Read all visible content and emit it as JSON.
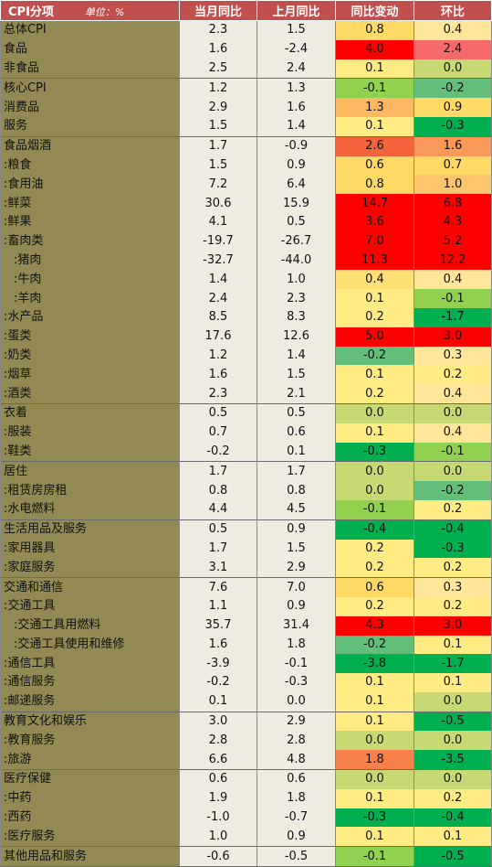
{
  "header": {
    "col_item": "CPI分项",
    "unit": "单位：%",
    "col_yoy": "当月同比",
    "col_prev_yoy": "上月同比",
    "col_yoy_change": "同比变动",
    "col_mom": "环比"
  },
  "rows": [
    {
      "label": "总体CPI",
      "yoy": "2.3",
      "prev": "1.5",
      "chg": "0.8",
      "mom": "0.4",
      "chg_color": "#ffd966",
      "mom_color": "#ffe699",
      "group_start": true
    },
    {
      "label": "食品",
      "yoy": "1.6",
      "prev": "-2.4",
      "chg": "4.0",
      "mom": "2.4",
      "chg_color": "#ff0000",
      "mom_color": "#f8696b",
      "group_start": false
    },
    {
      "label": "非食品",
      "yoy": "2.5",
      "prev": "2.4",
      "chg": "0.1",
      "mom": "0.0",
      "chg_color": "#ffeb84",
      "mom_color": "#c6d973",
      "group_start": false
    },
    {
      "label": "核心CPI",
      "yoy": "1.2",
      "prev": "1.3",
      "chg": "-0.1",
      "mom": "-0.2",
      "chg_color": "#92d050",
      "mom_color": "#63be7b",
      "group_start": true
    },
    {
      "label": "消费品",
      "yoy": "2.9",
      "prev": "1.6",
      "chg": "1.3",
      "mom": "0.9",
      "chg_color": "#fdb861",
      "mom_color": "#ffd966",
      "group_start": false
    },
    {
      "label": "服务",
      "yoy": "1.5",
      "prev": "1.4",
      "chg": "0.1",
      "mom": "-0.3",
      "chg_color": "#ffeb84",
      "mom_color": "#00b050",
      "group_start": false
    },
    {
      "label": "食品烟酒",
      "yoy": "1.7",
      "prev": "-0.9",
      "chg": "2.6",
      "mom": "1.6",
      "chg_color": "#f4643c",
      "mom_color": "#fa9a5a",
      "group_start": true
    },
    {
      "label": ":粮食",
      "yoy": "1.5",
      "prev": "0.9",
      "chg": "0.6",
      "mom": "0.7",
      "chg_color": "#ffd966",
      "mom_color": "#ffd966",
      "group_start": false
    },
    {
      "label": ":食用油",
      "yoy": "7.2",
      "prev": "6.4",
      "chg": "0.8",
      "mom": "1.0",
      "chg_color": "#ffd966",
      "mom_color": "#fdc66c",
      "group_start": false
    },
    {
      "label": ":鲜菜",
      "yoy": "30.6",
      "prev": "15.9",
      "chg": "14.7",
      "mom": "6.8",
      "chg_color": "#ff0000",
      "mom_color": "#ff0000",
      "group_start": false
    },
    {
      "label": ":鲜果",
      "yoy": "4.1",
      "prev": "0.5",
      "chg": "3.6",
      "mom": "4.3",
      "chg_color": "#ff0000",
      "mom_color": "#ff0000",
      "group_start": false
    },
    {
      "label": ":畜肉类",
      "yoy": "-19.7",
      "prev": "-26.7",
      "chg": "7.0",
      "mom": "5.2",
      "chg_color": "#ff0000",
      "mom_color": "#ff0000",
      "group_start": false
    },
    {
      "label": " :猪肉",
      "yoy": "-32.7",
      "prev": "-44.0",
      "chg": "11.3",
      "mom": "12.2",
      "chg_color": "#ff0000",
      "mom_color": "#ff0000",
      "group_start": false
    },
    {
      "label": " :牛肉",
      "yoy": "1.4",
      "prev": "1.0",
      "chg": "0.4",
      "mom": "0.4",
      "chg_color": "#ffe075",
      "mom_color": "#ffe699",
      "group_start": false
    },
    {
      "label": " :羊肉",
      "yoy": "2.4",
      "prev": "2.3",
      "chg": "0.1",
      "mom": "-0.1",
      "chg_color": "#ffeb84",
      "mom_color": "#92d050",
      "group_start": false
    },
    {
      "label": ":水产品",
      "yoy": "8.5",
      "prev": "8.3",
      "chg": "0.2",
      "mom": "-1.7",
      "chg_color": "#ffeb84",
      "mom_color": "#00b050",
      "group_start": false
    },
    {
      "label": ":蛋类",
      "yoy": "17.6",
      "prev": "12.6",
      "chg": "5.0",
      "mom": "3.0",
      "chg_color": "#ff0000",
      "mom_color": "#ff0000",
      "group_start": false
    },
    {
      "label": ":奶类",
      "yoy": "1.2",
      "prev": "1.4",
      "chg": "-0.2",
      "mom": "0.3",
      "chg_color": "#63be7b",
      "mom_color": "#ffe699",
      "group_start": false
    },
    {
      "label": ":烟草",
      "yoy": "1.6",
      "prev": "1.5",
      "chg": "0.1",
      "mom": "0.2",
      "chg_color": "#ffeb84",
      "mom_color": "#ffeb84",
      "group_start": false
    },
    {
      "label": ":酒类",
      "yoy": "2.3",
      "prev": "2.1",
      "chg": "0.2",
      "mom": "0.4",
      "chg_color": "#ffeb84",
      "mom_color": "#ffe699",
      "group_start": false
    },
    {
      "label": "衣着",
      "yoy": "0.5",
      "prev": "0.5",
      "chg": "0.0",
      "mom": "0.0",
      "chg_color": "#c6d973",
      "mom_color": "#c6d973",
      "group_start": true
    },
    {
      "label": ":服装",
      "yoy": "0.7",
      "prev": "0.6",
      "chg": "0.1",
      "mom": "0.4",
      "chg_color": "#ffeb84",
      "mom_color": "#ffe699",
      "group_start": false
    },
    {
      "label": ":鞋类",
      "yoy": "-0.2",
      "prev": "0.1",
      "chg": "-0.3",
      "mom": "-0.1",
      "chg_color": "#00b050",
      "mom_color": "#92d050",
      "group_start": false
    },
    {
      "label": "居住",
      "yoy": "1.7",
      "prev": "1.7",
      "chg": "0.0",
      "mom": "0.0",
      "chg_color": "#c6d973",
      "mom_color": "#c6d973",
      "group_start": true
    },
    {
      "label": ":租赁房房租",
      "yoy": "0.8",
      "prev": "0.8",
      "chg": "0.0",
      "mom": "-0.2",
      "chg_color": "#c6d973",
      "mom_color": "#63be7b",
      "group_start": false
    },
    {
      "label": ":水电燃料",
      "yoy": "4.4",
      "prev": "4.5",
      "chg": "-0.1",
      "mom": "0.2",
      "chg_color": "#92d050",
      "mom_color": "#ffeb84",
      "group_start": false
    },
    {
      "label": "生活用品及服务",
      "yoy": "0.5",
      "prev": "0.9",
      "chg": "-0.4",
      "mom": "-0.4",
      "chg_color": "#00b050",
      "mom_color": "#00b050",
      "group_start": true
    },
    {
      "label": ":家用器具",
      "yoy": "1.7",
      "prev": "1.5",
      "chg": "0.2",
      "mom": "-0.3",
      "chg_color": "#ffeb84",
      "mom_color": "#00b050",
      "group_start": false
    },
    {
      "label": ":家庭服务",
      "yoy": "3.1",
      "prev": "2.9",
      "chg": "0.2",
      "mom": "0.2",
      "chg_color": "#ffeb84",
      "mom_color": "#ffeb84",
      "group_start": false
    },
    {
      "label": "交通和通信",
      "yoy": "7.6",
      "prev": "7.0",
      "chg": "0.6",
      "mom": "0.3",
      "chg_color": "#ffd966",
      "mom_color": "#ffe699",
      "group_start": true
    },
    {
      "label": ":交通工具",
      "yoy": "1.1",
      "prev": "0.9",
      "chg": "0.2",
      "mom": "0.2",
      "chg_color": "#ffeb84",
      "mom_color": "#ffeb84",
      "group_start": false
    },
    {
      "label": " :交通工具用燃料",
      "yoy": "35.7",
      "prev": "31.4",
      "chg": "4.3",
      "mom": "3.0",
      "chg_color": "#ff0000",
      "mom_color": "#ff0000",
      "group_start": false
    },
    {
      "label": " :交通工具使用和维修",
      "yoy": "1.6",
      "prev": "1.8",
      "chg": "-0.2",
      "mom": "0.1",
      "chg_color": "#63be7b",
      "mom_color": "#ffeb84",
      "group_start": false
    },
    {
      "label": ":通信工具",
      "yoy": "-3.9",
      "prev": "-0.1",
      "chg": "-3.8",
      "mom": "-1.7",
      "chg_color": "#00b050",
      "mom_color": "#00b050",
      "group_start": false
    },
    {
      "label": ":通信服务",
      "yoy": "-0.2",
      "prev": "-0.3",
      "chg": "0.1",
      "mom": "0.1",
      "chg_color": "#ffeb84",
      "mom_color": "#ffeb84",
      "group_start": false
    },
    {
      "label": ":邮递服务",
      "yoy": "0.1",
      "prev": "0.0",
      "chg": "0.1",
      "mom": "0.0",
      "chg_color": "#ffeb84",
      "mom_color": "#c6d973",
      "group_start": false
    },
    {
      "label": "教育文化和娱乐",
      "yoy": "3.0",
      "prev": "2.9",
      "chg": "0.1",
      "mom": "-0.5",
      "chg_color": "#ffeb84",
      "mom_color": "#00b050",
      "group_start": true
    },
    {
      "label": ":教育服务",
      "yoy": "2.8",
      "prev": "2.8",
      "chg": "0.0",
      "mom": "0.0",
      "chg_color": "#c6d973",
      "mom_color": "#c6d973",
      "group_start": false
    },
    {
      "label": ":旅游",
      "yoy": "6.6",
      "prev": "4.8",
      "chg": "1.8",
      "mom": "-3.5",
      "chg_color": "#f8804a",
      "mom_color": "#00b050",
      "group_start": false
    },
    {
      "label": "医疗保健",
      "yoy": "0.6",
      "prev": "0.6",
      "chg": "0.0",
      "mom": "0.0",
      "chg_color": "#c6d973",
      "mom_color": "#c6d973",
      "group_start": true
    },
    {
      "label": ":中药",
      "yoy": "1.9",
      "prev": "1.8",
      "chg": "0.1",
      "mom": "0.2",
      "chg_color": "#ffeb84",
      "mom_color": "#ffeb84",
      "group_start": false
    },
    {
      "label": ":西药",
      "yoy": "-1.0",
      "prev": "-0.7",
      "chg": "-0.3",
      "mom": "-0.4",
      "chg_color": "#00b050",
      "mom_color": "#00b050",
      "group_start": false
    },
    {
      "label": ":医疗服务",
      "yoy": "1.0",
      "prev": "0.9",
      "chg": "0.1",
      "mom": "0.1",
      "chg_color": "#ffeb84",
      "mom_color": "#ffeb84",
      "group_start": false
    },
    {
      "label": "其他用品和服务",
      "yoy": "-0.6",
      "prev": "-0.5",
      "chg": "-0.1",
      "mom": "-0.5",
      "chg_color": "#92d050",
      "mom_color": "#00b050",
      "group_start": true
    }
  ]
}
